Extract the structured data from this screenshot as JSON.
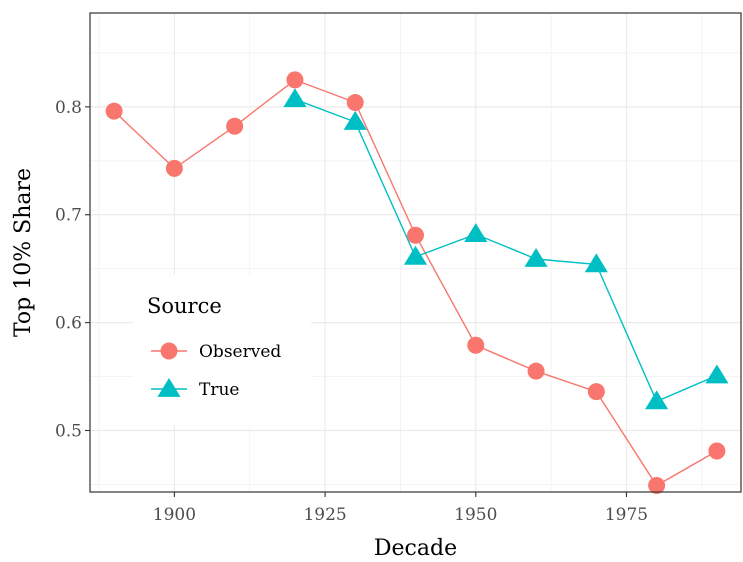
{
  "chart_data": {
    "type": "line",
    "xlabel": "Decade",
    "ylabel": "Top 10% Share",
    "xlim": [
      1886,
      1994
    ],
    "ylim": [
      0.443,
      0.887
    ],
    "x_ticks": [
      1900,
      1925,
      1950,
      1975
    ],
    "y_ticks": [
      0.5,
      0.6,
      0.7,
      0.8
    ],
    "grid": true,
    "legend": {
      "title": "Source",
      "placement": "left-middle"
    },
    "series": [
      {
        "name": "Observed",
        "marker": "circle",
        "color": "#F8766D",
        "points": [
          [
            1890,
            0.796
          ],
          [
            1900,
            0.743
          ],
          [
            1910,
            0.782
          ],
          [
            1920,
            0.825
          ],
          [
            1930,
            0.804
          ],
          [
            1940,
            0.681
          ],
          [
            1950,
            0.579
          ],
          [
            1960,
            0.555
          ],
          [
            1970,
            0.536
          ],
          [
            1980,
            0.449
          ],
          [
            1990,
            0.481
          ]
        ]
      },
      {
        "name": "True",
        "marker": "triangle",
        "color": "#00BFC4",
        "points": [
          [
            1920,
            0.807
          ],
          [
            1930,
            0.786
          ],
          [
            1940,
            0.661
          ],
          [
            1950,
            0.682
          ],
          [
            1960,
            0.659
          ],
          [
            1970,
            0.654
          ],
          [
            1980,
            0.527
          ],
          [
            1990,
            0.551
          ]
        ]
      }
    ]
  }
}
